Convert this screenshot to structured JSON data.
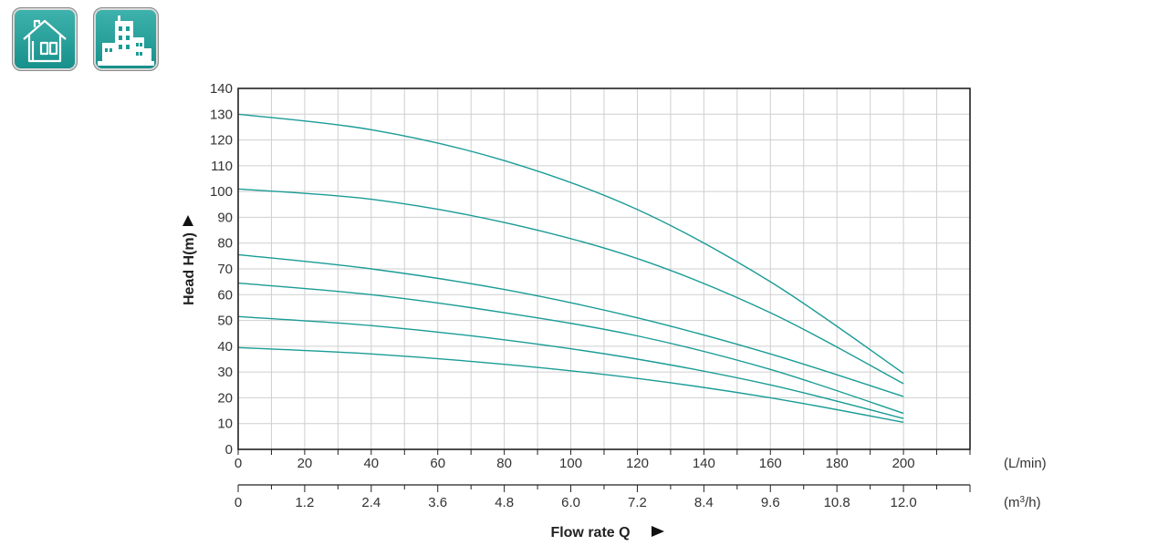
{
  "icons": [
    {
      "name": "house-icon"
    },
    {
      "name": "city-buildings-icon"
    }
  ],
  "chart_data": {
    "type": "line",
    "title": "",
    "ylabel": "Head H(m)",
    "xlabel": "Flow rate Q",
    "ylim": [
      0,
      140
    ],
    "yticks": [
      0,
      10,
      20,
      30,
      40,
      50,
      60,
      70,
      80,
      90,
      100,
      110,
      120,
      130,
      140
    ],
    "xlim": [
      0,
      220
    ],
    "x_primary": {
      "unit": "(L/min)",
      "ticks": [
        0,
        20,
        40,
        60,
        80,
        100,
        120,
        140,
        160,
        180,
        200
      ]
    },
    "x_secondary": {
      "unit_prefix": "(m",
      "unit_sup": "3",
      "unit_suffix": "/h)",
      "ticks": [
        "0",
        "1.2",
        "2.4",
        "3.6",
        "4.8",
        "6.0",
        "7.2",
        "8.4",
        "9.6",
        "10.8",
        "12.0"
      ],
      "max": 13.2
    },
    "grid": true,
    "series_color": "#1a9c96",
    "series": [
      {
        "x": [
          0,
          40,
          80,
          120,
          160,
          200
        ],
        "values": [
          130,
          124,
          112,
          93,
          65,
          29.5
        ]
      },
      {
        "x": [
          0,
          40,
          80,
          120,
          160,
          200
        ],
        "values": [
          101,
          97,
          88,
          74,
          53,
          25.5
        ]
      },
      {
        "x": [
          0,
          40,
          80,
          120,
          160,
          200
        ],
        "values": [
          75.5,
          70,
          62,
          51,
          37,
          20.5
        ]
      },
      {
        "x": [
          0,
          40,
          80,
          120,
          160,
          200
        ],
        "values": [
          64.5,
          60,
          53,
          44,
          31,
          14
        ]
      },
      {
        "x": [
          0,
          40,
          80,
          120,
          160,
          200
        ],
        "values": [
          51.5,
          48,
          42.5,
          35,
          25,
          12
        ]
      },
      {
        "x": [
          0,
          40,
          80,
          120,
          160,
          200
        ],
        "values": [
          39.5,
          37,
          33,
          27.5,
          20,
          10.5
        ]
      }
    ]
  }
}
